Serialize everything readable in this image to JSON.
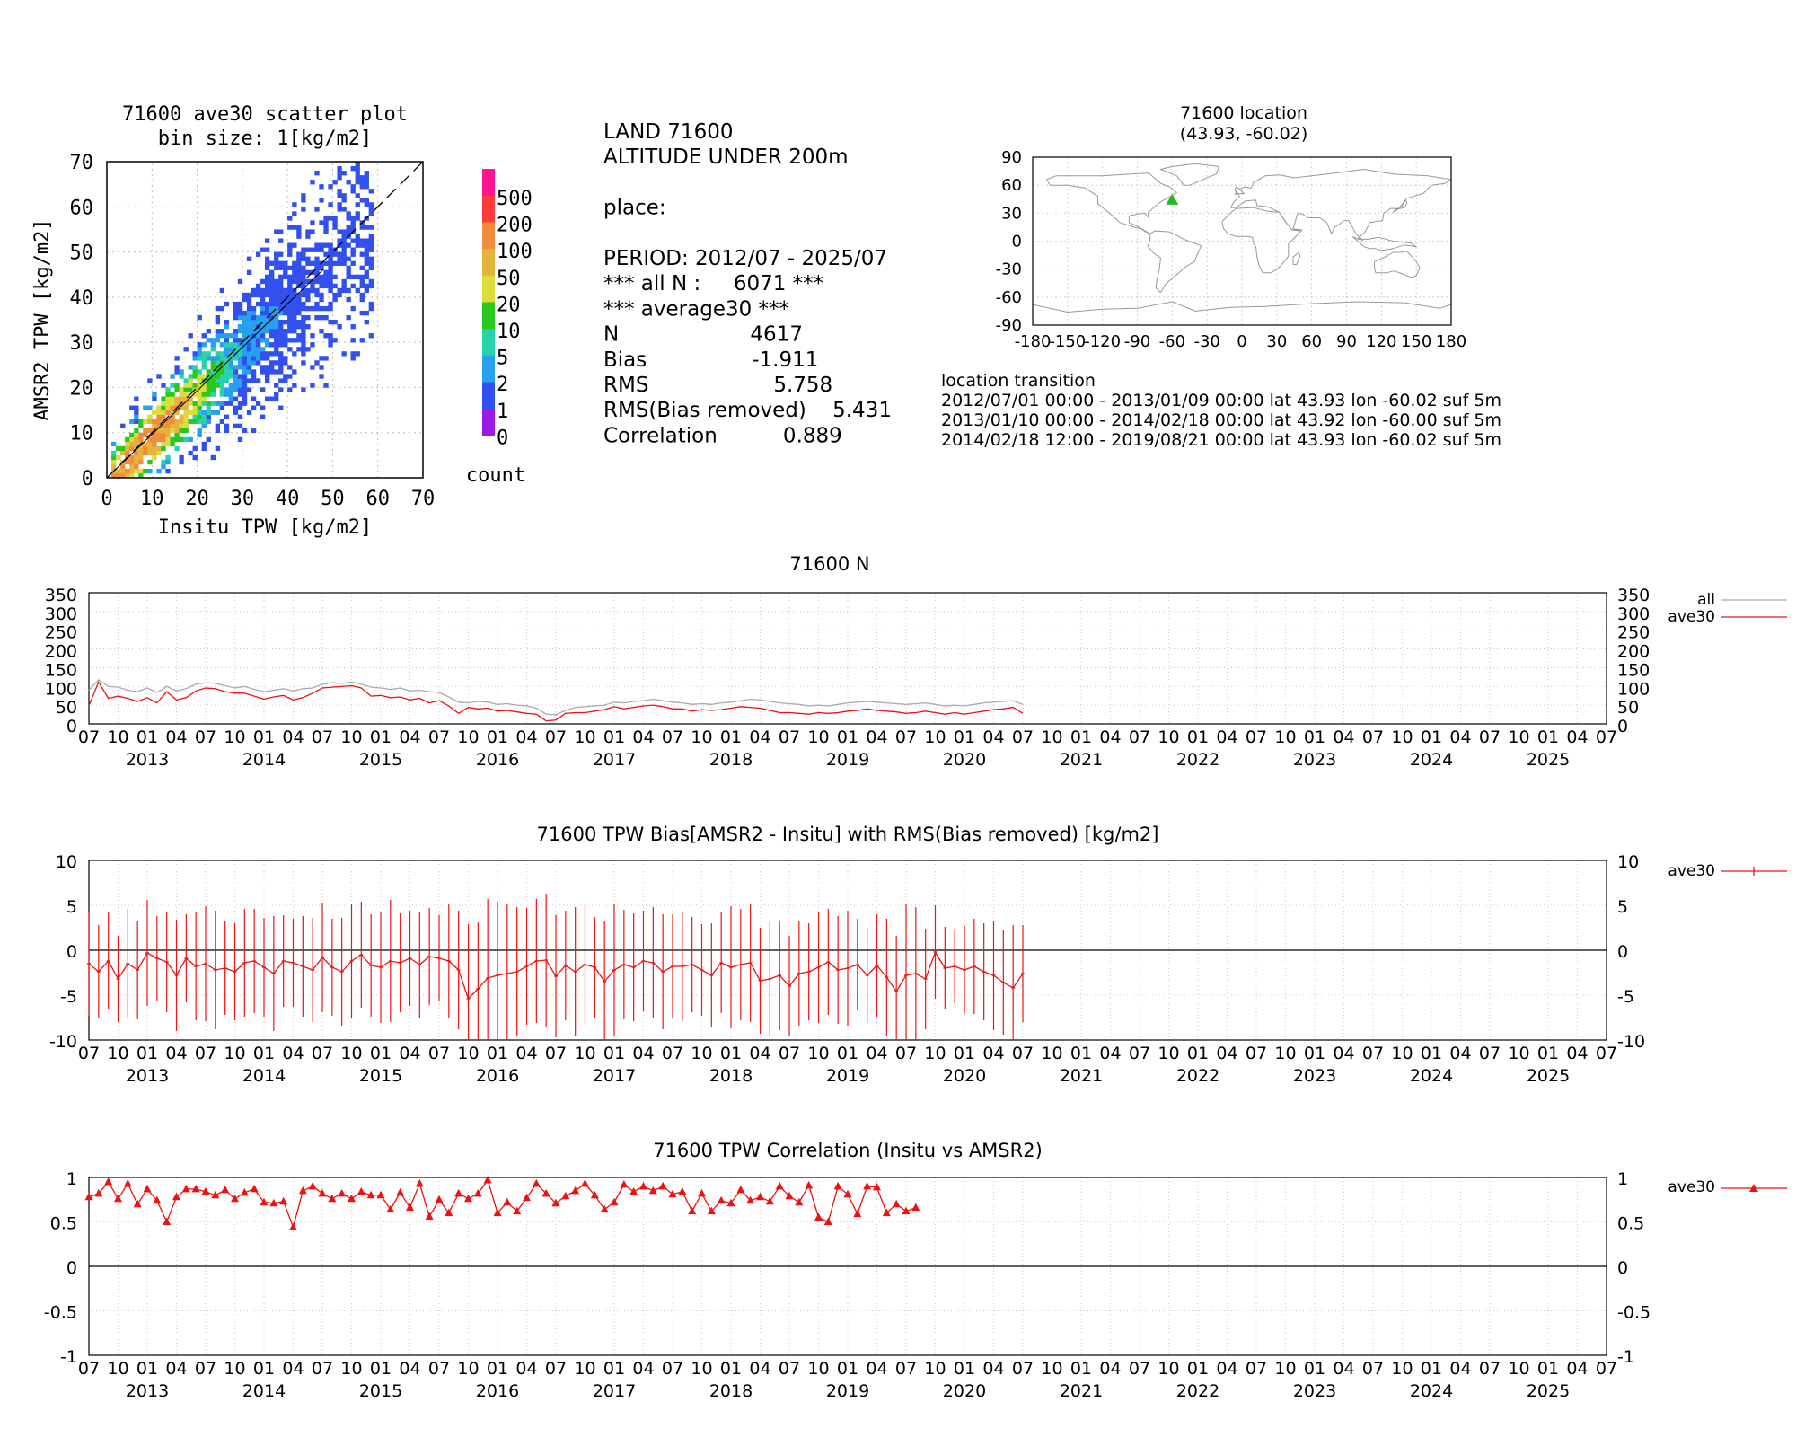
{
  "scatter": {
    "title_line1": "71600 ave30 scatter plot",
    "title_line2": "bin size: 1[kg/m2]",
    "xlabel": "Insitu TPW [kg/m2]",
    "ylabel": "AMSR2 TPW [kg/m2]",
    "colorbar_title": "count",
    "colorbar_levels": [
      "500",
      "200",
      "100",
      "50",
      "20",
      "10",
      "5",
      "2",
      "1",
      "0"
    ],
    "colorbar_colors": [
      "#ff1493",
      "#ff3c3c",
      "#f08c3c",
      "#e6b43c",
      "#dcdc3c",
      "#28c81e",
      "#28d2aa",
      "#28a0f0",
      "#3250f0",
      "#9b19e6"
    ]
  },
  "stats": {
    "lines": [
      "LAND 71600",
      "ALTITUDE UNDER 200m",
      "",
      "place:",
      "",
      "PERIOD: 2012/07 - 2025/07",
      "*** all N :     6071 ***",
      "*** average30 ***",
      "N                    4617",
      "Bias                -1.911",
      "RMS                   5.758",
      "RMS(Bias removed)    5.431",
      "Correlation          0.889"
    ]
  },
  "map": {
    "title_line1": "71600 location",
    "title_line2": "(43.93, -60.02)",
    "marker_color": "#22bb22",
    "transition_title": "location transition",
    "transitions": [
      "2012/07/01 00:00 - 2013/01/09 00:00 lat 43.93 lon -60.02 suf 5m",
      "2013/01/10 00:00 - 2014/02/18 00:00 lat 43.92 lon -60.00 suf 5m",
      "2014/02/18 12:00 - 2019/08/21 00:00 lat 43.93 lon -60.02 suf 5m"
    ]
  },
  "timeseries": {
    "month_tick_labels": [
      "07",
      "10",
      "01",
      "04"
    ],
    "year_labels": [
      "2013",
      "2014",
      "2015",
      "2016",
      "2017",
      "2018",
      "2019",
      "2020",
      "2021",
      "2022",
      "2023",
      "2024",
      "2025"
    ],
    "n_plot": {
      "title": "71600 N",
      "legend_all": "all",
      "legend_ave30": "ave30",
      "y_ticks": [
        "0",
        "50",
        "100",
        "150",
        "200",
        "250",
        "300",
        "350"
      ]
    },
    "bias_plot": {
      "title": "71600 TPW Bias[AMSR2 - Insitu] with RMS(Bias removed) [kg/m2]",
      "legend": "ave30",
      "y_ticks": [
        "-10",
        "-5",
        "0",
        "5",
        "10"
      ]
    },
    "corr_plot": {
      "title": "71600 TPW Correlation (Insitu vs AMSR2)",
      "legend": "ave30",
      "y_ticks": [
        "-1",
        "-0.5",
        "0",
        "0.5",
        "1"
      ]
    }
  },
  "chart_data": [
    {
      "type": "heatmap",
      "title": "71600 ave30 scatter plot",
      "subtitle": "bin size: 1[kg/m2]",
      "xlabel": "Insitu TPW [kg/m2]",
      "ylabel": "AMSR2 TPW [kg/m2]",
      "xlim": [
        0,
        70
      ],
      "ylim": [
        0,
        70
      ],
      "xticks": [
        0,
        10,
        20,
        30,
        40,
        50,
        60,
        70
      ],
      "yticks": [
        0,
        10,
        20,
        30,
        40,
        50,
        60,
        70
      ],
      "colorbar_label": "count",
      "bias": -1.911,
      "rms_bias_removed": 5.431,
      "n": 4617,
      "x_range_observed": [
        1,
        58
      ],
      "density_peak_x": 8
    },
    {
      "type": "line",
      "title": "71600 N",
      "x_range": [
        "2012-07",
        "2025-07"
      ],
      "ylim": [
        0,
        350
      ],
      "series": [
        {
          "name": "all",
          "color": "#aaaaaa",
          "start": "2012-07",
          "values": [
            90,
            118,
            100,
            98,
            90,
            86,
            96,
            84,
            100,
            88,
            94,
            106,
            110,
            108,
            102,
            96,
            100,
            92,
            86,
            90,
            94,
            88,
            94,
            96,
            106,
            110,
            108,
            112,
            106,
            98,
            96,
            92,
            96,
            88,
            90,
            86,
            84,
            72,
            58,
            56,
            60,
            58,
            52,
            54,
            50,
            48,
            42,
            26,
            24,
            36,
            44,
            46,
            48,
            50,
            58,
            56,
            60,
            62,
            66,
            62,
            58,
            56,
            52,
            54,
            52,
            56,
            58,
            62,
            66,
            64,
            60,
            56,
            54,
            52,
            48,
            50,
            48,
            52,
            56,
            58,
            60,
            58,
            56,
            54,
            52,
            54,
            56,
            52,
            48,
            50,
            48,
            52,
            56,
            58,
            60,
            62,
            52
          ]
        },
        {
          "name": "ave30",
          "color": "#ee1111",
          "start": "2012-07",
          "values": [
            48,
            112,
            68,
            74,
            68,
            60,
            70,
            56,
            86,
            64,
            70,
            88,
            96,
            94,
            86,
            82,
            82,
            74,
            66,
            72,
            76,
            64,
            70,
            82,
            96,
            98,
            100,
            102,
            96,
            74,
            76,
            70,
            72,
            64,
            68,
            56,
            62,
            48,
            28,
            44,
            40,
            42,
            34,
            36,
            32,
            28,
            26,
            8,
            10,
            28,
            30,
            30,
            34,
            38,
            46,
            40,
            44,
            48,
            50,
            46,
            40,
            40,
            34,
            38,
            36,
            38,
            42,
            46,
            44,
            42,
            36,
            30,
            30,
            28,
            26,
            30,
            28,
            30,
            34,
            36,
            40,
            36,
            34,
            32,
            28,
            30,
            34,
            30,
            26,
            30,
            26,
            30,
            34,
            38,
            40,
            44,
            28
          ]
        }
      ]
    },
    {
      "type": "line",
      "title": "71600 TPW Bias[AMSR2 - Insitu] with RMS(Bias removed) [kg/m2]",
      "x_range": [
        "2012-07",
        "2025-07"
      ],
      "ylim": [
        -10,
        10
      ],
      "series": [
        {
          "name": "ave30",
          "color": "#ee1111",
          "start": "2012-07",
          "values": [
            -1.5,
            -2.4,
            -1.2,
            -3.2,
            -1.5,
            -2.2,
            -0.3,
            -0.9,
            -1.3,
            -2.8,
            -0.9,
            -1.8,
            -1.5,
            -2.2,
            -2.0,
            -2.4,
            -1.4,
            -1.2,
            -1.9,
            -2.6,
            -1.2,
            -1.4,
            -1.8,
            -2.2,
            -0.8,
            -1.9,
            -2.4,
            -1.2,
            -0.5,
            -1.7,
            -1.9,
            -1.2,
            -1.4,
            -0.9,
            -1.6,
            -0.7,
            -0.9,
            -1.2,
            -2.2,
            -5.4,
            -4.3,
            -3.1,
            -2.8,
            -2.6,
            -2.4,
            -1.8,
            -1.2,
            -1.1,
            -2.9,
            -1.7,
            -2.4,
            -1.6,
            -1.9,
            -3.5,
            -2.2,
            -1.6,
            -1.9,
            -1.2,
            -1.4,
            -2.4,
            -1.8,
            -1.8,
            -1.6,
            -2.2,
            -2.8,
            -1.4,
            -1.9,
            -1.6,
            -1.4,
            -3.4,
            -3.2,
            -2.8,
            -4.0,
            -2.6,
            -2.4,
            -1.9,
            -1.3,
            -2.2,
            -2.0,
            -1.6,
            -2.8,
            -1.7,
            -3.0,
            -4.6,
            -2.8,
            -2.6,
            -3.2,
            -0.2,
            -2.0,
            -1.8,
            -2.2,
            -1.8,
            -2.4,
            -2.8,
            -3.6,
            -4.2,
            -2.6
          ]
        },
        {
          "name": "rms_bias_removed",
          "values_note": "error bar half-width",
          "values": [
            5.8,
            5.2,
            5.4,
            4.8,
            6.1,
            5.5,
            5.9,
            4.7,
            5.6,
            6.2,
            4.9,
            6.0,
            6.4,
            6.6,
            5.2,
            5.4,
            6.0,
            5.8,
            5.5,
            6.4,
            5.1,
            4.9,
            5.6,
            5.8,
            6.1,
            5.4,
            6.0,
            6.3,
            5.9,
            5.7,
            6.2,
            6.8,
            5.5,
            5.3,
            5.9,
            5.4,
            4.8,
            6.3,
            6.6,
            8.3,
            7.4,
            8.8,
            8.2,
            7.8,
            7.2,
            6.5,
            6.9,
            7.4,
            6.8,
            6.1,
            7.2,
            6.7,
            5.6,
            6.8,
            7.3,
            6.1,
            6.0,
            5.6,
            6.2,
            6.4,
            5.8,
            6.1,
            5.3,
            5.1,
            5.8,
            5.6,
            6.8,
            6.2,
            6.6,
            5.9,
            6.3,
            6.1,
            5.6,
            5.8,
            5.4,
            6.2,
            5.9,
            6.0,
            6.4,
            5.1,
            5.3,
            5.7,
            6.5,
            6.2,
            7.9,
            7.4,
            5.6,
            5.2,
            4.6,
            4.1,
            4.9,
            5.3,
            5.4,
            6.1,
            5.8,
            7.0,
            5.4
          ]
        }
      ]
    },
    {
      "type": "line",
      "title": "71600 TPW Correlation (Insitu vs AMSR2)",
      "x_range": [
        "2012-07",
        "2025-07"
      ],
      "ylim": [
        -1,
        1
      ],
      "series": [
        {
          "name": "ave30",
          "color": "#ee1111",
          "marker": "triangle",
          "start": "2012-07",
          "values": [
            0.78,
            0.82,
            0.95,
            0.76,
            0.93,
            0.7,
            0.87,
            0.74,
            0.5,
            0.78,
            0.87,
            0.87,
            0.84,
            0.8,
            0.86,
            0.76,
            0.83,
            0.87,
            0.72,
            0.71,
            0.73,
            0.44,
            0.85,
            0.9,
            0.82,
            0.76,
            0.82,
            0.76,
            0.84,
            0.8,
            0.8,
            0.64,
            0.83,
            0.66,
            0.93,
            0.56,
            0.75,
            0.6,
            0.82,
            0.76,
            0.82,
            0.97,
            0.6,
            0.72,
            0.62,
            0.77,
            0.93,
            0.82,
            0.71,
            0.79,
            0.85,
            0.93,
            0.8,
            0.64,
            0.72,
            0.92,
            0.84,
            0.9,
            0.85,
            0.9,
            0.81,
            0.84,
            0.62,
            0.82,
            0.62,
            0.74,
            0.71,
            0.86,
            0.74,
            0.78,
            0.73,
            0.9,
            0.79,
            0.72,
            0.91,
            0.55,
            0.5,
            0.9,
            0.81,
            0.59,
            0.9,
            0.89,
            0.6,
            0.7,
            0.62,
            0.66
          ]
        }
      ]
    }
  ]
}
